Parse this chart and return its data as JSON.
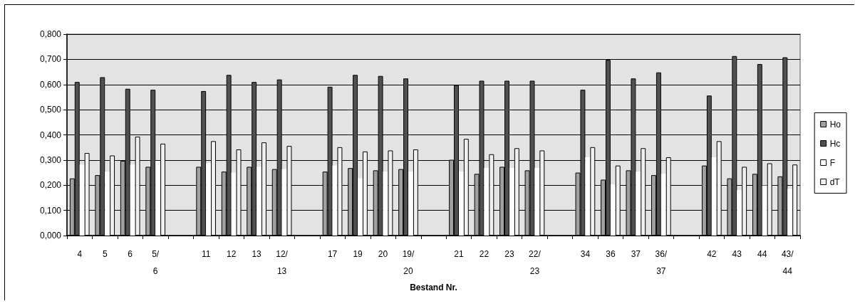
{
  "chart_data": {
    "type": "bar",
    "xlabel": "Bestand Nr.",
    "categories": [
      "4",
      "5",
      "6",
      "5/6",
      null,
      "11",
      "12",
      "13",
      "12/13",
      null,
      "17",
      "19",
      "20",
      "19/20",
      null,
      "21",
      "22",
      "23",
      "22/23",
      null,
      "34",
      "36",
      "37",
      "36/37",
      null,
      "42",
      "43",
      "44",
      "43/44"
    ],
    "series": [
      {
        "name": "Ho",
        "color": "#a0a0a0",
        "values": [
          0.227,
          0.24,
          0.297,
          0.273,
          null,
          0.273,
          0.254,
          0.273,
          0.264,
          null,
          0.254,
          0.268,
          0.259,
          0.264,
          null,
          0.301,
          0.245,
          0.273,
          0.259,
          null,
          0.25,
          0.222,
          0.259,
          0.24,
          null,
          0.278,
          0.227,
          0.245,
          0.235
        ]
      },
      {
        "name": "Hc",
        "color": "#505050",
        "values": [
          0.61,
          0.629,
          0.583,
          0.579,
          null,
          0.574,
          0.638,
          0.61,
          0.62,
          null,
          0.591,
          0.638,
          0.634,
          0.624,
          null,
          0.598,
          0.615,
          0.615,
          0.615,
          null,
          0.579,
          0.698,
          0.624,
          0.648,
          null,
          0.556,
          0.713,
          0.681,
          0.708
        ]
      },
      {
        "name": "F",
        "color": "#ffffff",
        "values": [
          0.282,
          0.254,
          0.282,
          0.297,
          null,
          0.287,
          0.25,
          0.273,
          0.264,
          null,
          0.278,
          0.227,
          0.254,
          0.254,
          null,
          0.254,
          0.268,
          0.268,
          0.268,
          null,
          0.311,
          0.203,
          0.254,
          0.245,
          null,
          0.311,
          0.18,
          0.199,
          0.185
        ]
      },
      {
        "name": "dT",
        "color": "#f0f0f0",
        "values": [
          0.328,
          0.318,
          0.393,
          0.365,
          null,
          0.375,
          0.342,
          0.37,
          0.356,
          null,
          0.351,
          0.334,
          0.338,
          0.342,
          null,
          0.384,
          0.323,
          0.347,
          0.338,
          null,
          0.351,
          0.278,
          0.347,
          0.311,
          null,
          0.375,
          0.273,
          0.287,
          0.282
        ]
      }
    ],
    "ylim": [
      0,
      0.8
    ],
    "yticks": [
      {
        "value": 0,
        "label": "0,000"
      },
      {
        "value": 0.1,
        "label": "0,100"
      },
      {
        "value": 0.2,
        "label": "0,200"
      },
      {
        "value": 0.3,
        "label": "0,300"
      },
      {
        "value": 0.4,
        "label": "0,400"
      },
      {
        "value": 0.5,
        "label": "0,500"
      },
      {
        "value": 0.6,
        "label": "0,600"
      },
      {
        "value": 0.7,
        "label": "0,700"
      },
      {
        "value": 0.8,
        "label": "0,800"
      }
    ],
    "grid": "y",
    "legend": "right"
  }
}
